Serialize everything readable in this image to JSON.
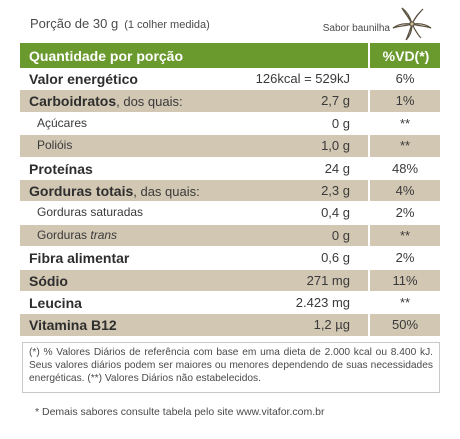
{
  "portion": {
    "main": "Porção de 30 g",
    "sub": "(1 colher medida)"
  },
  "flavor": "Sabor baunilha",
  "table": {
    "header_label": "Quantidade por porção",
    "header_vd": "%VD(*)",
    "rows": [
      {
        "label": "Valor energético",
        "amount": "126kcal = 529kJ",
        "vd": "6%"
      },
      {
        "label": "Carboidratos",
        "label_suffix": ", dos quais:",
        "amount": "2,7 g",
        "vd": "1%"
      },
      {
        "label": "Açúcares",
        "amount": "0 g",
        "vd": "**"
      },
      {
        "label": "Polióis",
        "amount": "1,0 g",
        "vd": "**"
      },
      {
        "label": "Proteínas",
        "amount": "24 g",
        "vd": "48%"
      },
      {
        "label": "Gorduras totais",
        "label_suffix": ", das quais:",
        "amount": "2,3 g",
        "vd": "4%"
      },
      {
        "label": "Gorduras saturadas",
        "amount": "0,4 g",
        "vd": "2%"
      },
      {
        "label": "Gorduras",
        "label_italic": "trans",
        "amount": "0 g",
        "vd": "**"
      },
      {
        "label": "Fibra alimentar",
        "amount": "0,6 g",
        "vd": "2%"
      },
      {
        "label": "Sódio",
        "amount": "271 mg",
        "vd": "11%"
      },
      {
        "label": "Leucina",
        "amount": "2.423 mg",
        "vd": "**"
      },
      {
        "label": "Vitamina B12",
        "amount": "1,2 µg",
        "vd": "50%"
      }
    ]
  },
  "note": "(*) % Valores Diários de referência com base em uma dieta de 2.000 kcal ou 8.400 kJ. Seus valores diários podem ser maiores ou menores dependendo de suas necessidades energéticas. (**) Valores Diários não estabelecidos.",
  "footer": "* Demais sabores consulte tabela pelo site www.vitafor.com.br",
  "colors": {
    "header_green": "#6a9a2d",
    "shade": "#d1c7b3"
  }
}
